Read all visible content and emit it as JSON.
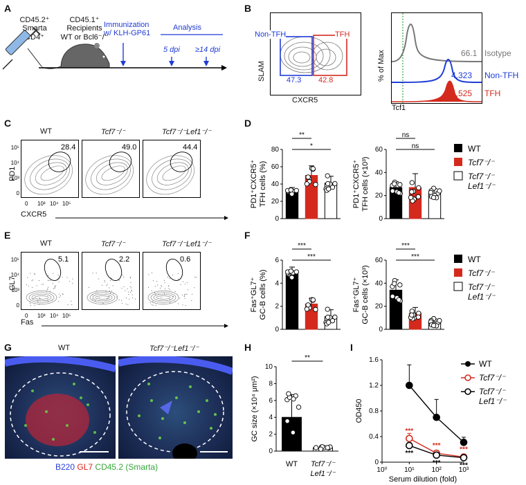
{
  "panels": {
    "A": "A",
    "B": "B",
    "C": "C",
    "D": "D",
    "E": "E",
    "F": "F",
    "G": "G",
    "H": "H",
    "I": "I"
  },
  "panel_a": {
    "donor_line1": "CD45.2⁺",
    "donor_line2": "Smarta",
    "donor_line3": "CD4⁺",
    "recipient_line1": "CD45.1⁺",
    "recipient_line2": "Recipients",
    "recipient_line3": "WT or Bcl6⁻/⁻",
    "immunization_line1": "Immunization",
    "immunization_line2": "w/ KLH-GP61",
    "analysis": "Analysis",
    "day1": "5 dpi",
    "day2": "≥14 dpi"
  },
  "panel_b": {
    "ylabel_left": "SLAM",
    "xlabel_left": "CXCR5",
    "gate_non_tfh": "Non-TFH",
    "gate_tfh": "TFH",
    "pct_non_tfh": "47.3",
    "pct_tfh": "42.8",
    "ylabel_right": "% of Max",
    "xlabel_right": "Tcf1",
    "mfi_isotype": "66.1",
    "mfi_non_tfh": "4,323",
    "mfi_tfh": "5,525",
    "leg_isotype": "Isotype",
    "leg_non_tfh": "Non-TFH",
    "leg_tfh": "TFH",
    "colors": {
      "isotype": "#777777",
      "non_tfh": "#1f3bd6",
      "tfh": "#d42a1e"
    }
  },
  "panel_c": {
    "genotypes": [
      "WT",
      "Tcf7⁻/⁻",
      "Tcf7⁻/⁻Lef1⁻/⁻"
    ],
    "pcts": [
      "28.4",
      "49.0",
      "44.4"
    ],
    "ylabel": "PD1",
    "xlabel": "CXCR5",
    "ticks": [
      "0",
      "10³",
      "10⁴",
      "10⁵"
    ]
  },
  "panel_e": {
    "genotypes": [
      "WT",
      "Tcf7⁻/⁻",
      "Tcf7⁻/⁻Lef1⁻/⁻"
    ],
    "pcts": [
      "5.1",
      "2.2",
      "0.6"
    ],
    "ylabel": "GL7",
    "xlabel": "Fas",
    "ticks": [
      "0",
      "10³",
      "10⁴",
      "10⁵"
    ]
  },
  "legend": {
    "wt": "WT",
    "tcf7": "Tcf7⁻/⁻",
    "dko1": "Tcf7⁻/⁻",
    "dko2": "Lef1⁻/⁻"
  },
  "chart_data": [
    {
      "id": "D-left",
      "type": "bar",
      "ylabel_line1": "PD1⁺CXCR5⁺",
      "ylabel_line2": "TFH cells (%)",
      "categories": [
        "WT",
        "Tcf7-/-",
        "Tcf7-/-Lef1-/-"
      ],
      "values": [
        31,
        50,
        41
      ],
      "errors": [
        5,
        11,
        8
      ],
      "ylim": [
        0,
        80
      ],
      "yticks": [
        "0",
        "20",
        "40",
        "60",
        "80"
      ],
      "sig": [
        {
          "a": 0,
          "b": 1,
          "label": "**"
        },
        {
          "a": 0,
          "b": 2,
          "label": "*"
        }
      ]
    },
    {
      "id": "D-right",
      "type": "bar",
      "ylabel_line1": "PD1⁺CXCR5⁺",
      "ylabel_line2": "TFH cells (×10³)",
      "categories": [
        "WT",
        "Tcf7-/-",
        "Tcf7-/-Lef1-/-"
      ],
      "values": [
        27,
        27,
        22
      ],
      "errors": [
        5,
        12,
        4
      ],
      "ylim": [
        0,
        60
      ],
      "yticks": [
        "0",
        "20",
        "40",
        "60"
      ],
      "sig": [
        {
          "a": 0,
          "b": 1,
          "label": "ns"
        },
        {
          "a": 0,
          "b": 2,
          "label": "ns"
        }
      ]
    },
    {
      "id": "F-left",
      "type": "bar",
      "ylabel_line1": "Fas⁺GL7⁺",
      "ylabel_line2": "GC-B cells (%)",
      "categories": [
        "WT",
        "Tcf7-/-",
        "Tcf7-/-Lef1-/-"
      ],
      "values": [
        4.8,
        2.2,
        1.1
      ],
      "errors": [
        0.6,
        0.5,
        0.6
      ],
      "ylim": [
        0,
        6
      ],
      "yticks": [
        "0",
        "2",
        "4",
        "6"
      ],
      "sig": [
        {
          "a": 0,
          "b": 1,
          "label": "***"
        },
        {
          "a": 0,
          "b": 2,
          "label": "***"
        }
      ]
    },
    {
      "id": "F-right",
      "type": "bar",
      "ylabel_line1": "Fas⁺GL7⁺",
      "ylabel_line2": "GC-B cells (×10³)",
      "categories": [
        "WT",
        "Tcf7-/-",
        "Tcf7-/-Lef1-/-"
      ],
      "values": [
        34,
        14,
        6
      ],
      "errors": [
        9,
        5,
        3
      ],
      "ylim": [
        0,
        60
      ],
      "yticks": [
        "0",
        "20",
        "40",
        "60"
      ],
      "sig": [
        {
          "a": 0,
          "b": 1,
          "label": "***"
        },
        {
          "a": 0,
          "b": 2,
          "label": "***"
        }
      ]
    },
    {
      "id": "H",
      "type": "bar",
      "ylabel": "GC size (×10⁴ μm²)",
      "categories": [
        "WT",
        "Tcf7⁻/⁻ Lef1⁻/⁻"
      ],
      "values": [
        4.0,
        0.4
      ],
      "errors": [
        2.7,
        0.2
      ],
      "ylim": [
        0,
        10
      ],
      "yticks": [
        "0",
        "2",
        "4",
        "6",
        "8",
        "10"
      ],
      "sig": [
        {
          "a": 0,
          "b": 1,
          "label": "**"
        }
      ]
    },
    {
      "id": "I",
      "type": "line",
      "xlabel": "Serum dilution (fold)",
      "ylabel": "OD450",
      "x": [
        10,
        100,
        1000
      ],
      "xticks": [
        "10⁰",
        "10¹",
        "10²",
        "10³"
      ],
      "ylim": [
        0,
        1.6
      ],
      "yticks": [
        "0",
        "0.4",
        "0.8",
        "1.2",
        "1.6"
      ],
      "series": [
        {
          "name": "WT",
          "values": [
            1.2,
            0.7,
            0.31
          ],
          "errors": [
            0.32,
            0.28,
            0.08
          ],
          "color": "#000000"
        },
        {
          "name": "Tcf7-/-",
          "values": [
            0.37,
            0.14,
            0.08
          ],
          "errors": [
            0.08,
            0.03,
            0.02
          ],
          "color": "#d42a1e"
        },
        {
          "name": "Tcf7-/-Lef1-/-",
          "values": [
            0.26,
            0.11,
            0.07
          ],
          "errors": [
            0.03,
            0.02,
            0.01
          ],
          "color": "#000000"
        }
      ],
      "sig_red": [
        "***",
        "***",
        "***"
      ],
      "sig_black": [
        "***",
        "***",
        "***"
      ]
    }
  ],
  "panel_g": {
    "title_left": "WT",
    "title_right": "Tcf7⁻/⁻Lef1⁻/⁻",
    "legend_b220": "B220",
    "legend_gl7": "GL7",
    "legend_cd45": "CD45.2 (Smarta)",
    "colors": {
      "b220": "#2b3fd9",
      "gl7": "#e0231a",
      "cd45": "#35a63a"
    }
  },
  "panel_h": {
    "cat1": "WT",
    "cat2_line1": "Tcf7⁻/⁻",
    "cat2_line2": "Lef1⁻/⁻"
  },
  "panel_i": {
    "leg_wt": "WT",
    "leg_tcf7": "Tcf7⁻/⁻",
    "leg_dko1": "Tcf7⁻/⁻",
    "leg_dko2": "Lef1⁻/⁻"
  }
}
